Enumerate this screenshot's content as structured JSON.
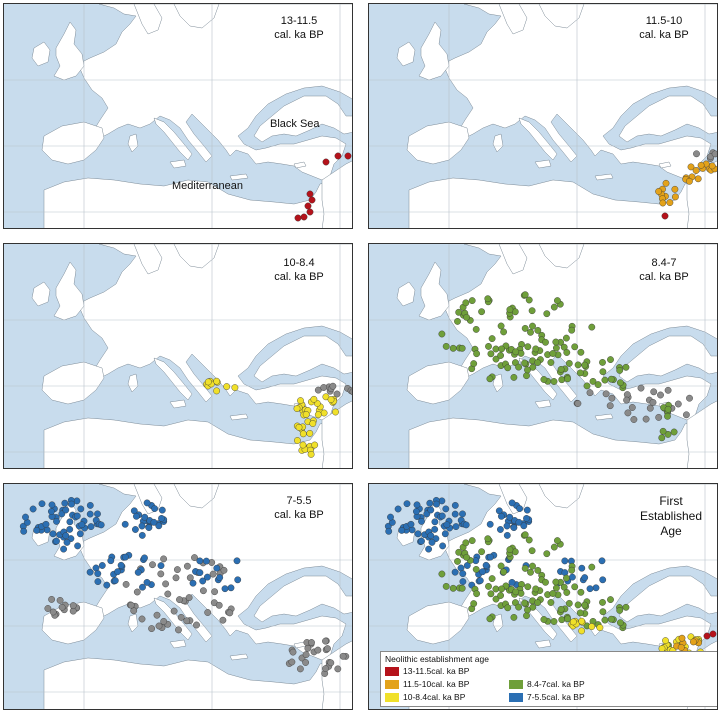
{
  "colors": {
    "sea": "#c8dced",
    "land": "#ffffff",
    "red": "#b5121b",
    "orange": "#e3a21a",
    "yellow": "#f0e02a",
    "green": "#6f9f3a",
    "blue": "#2b6fb3",
    "grey": "#8a8a8a"
  },
  "panels": [
    {
      "id": "p1",
      "title_line1": "13-11.5",
      "title_line2": "cal. ka BP",
      "labels": {
        "black_sea": "Black Sea",
        "mediterranean": "Mediterranean"
      }
    },
    {
      "id": "p2",
      "title_line1": "11.5-10",
      "title_line2": "cal. ka BP"
    },
    {
      "id": "p3",
      "title_line1": "10-8.4",
      "title_line2": "cal. ka BP"
    },
    {
      "id": "p4",
      "title_line1": "8.4-7",
      "title_line2": "cal. ka BP"
    },
    {
      "id": "p5",
      "title_line1": "7-5.5",
      "title_line2": "cal. ka BP"
    },
    {
      "id": "p6",
      "title_line1": "First",
      "title_line2": "Established",
      "title_line3": "Age"
    }
  ],
  "legend": {
    "title": "Neolithic establishment age",
    "items": [
      {
        "label": "13-11.5cal. ka BP",
        "color": "red"
      },
      {
        "label": "11.5-10cal. ka BP",
        "color": "orange"
      },
      {
        "label": "10-8.4cal. ka BP",
        "color": "yellow"
      },
      {
        "label": "8.4-7cal. ka BP",
        "color": "green"
      },
      {
        "label": "7-5.5cal. ka BP",
        "color": "blue"
      }
    ]
  }
}
